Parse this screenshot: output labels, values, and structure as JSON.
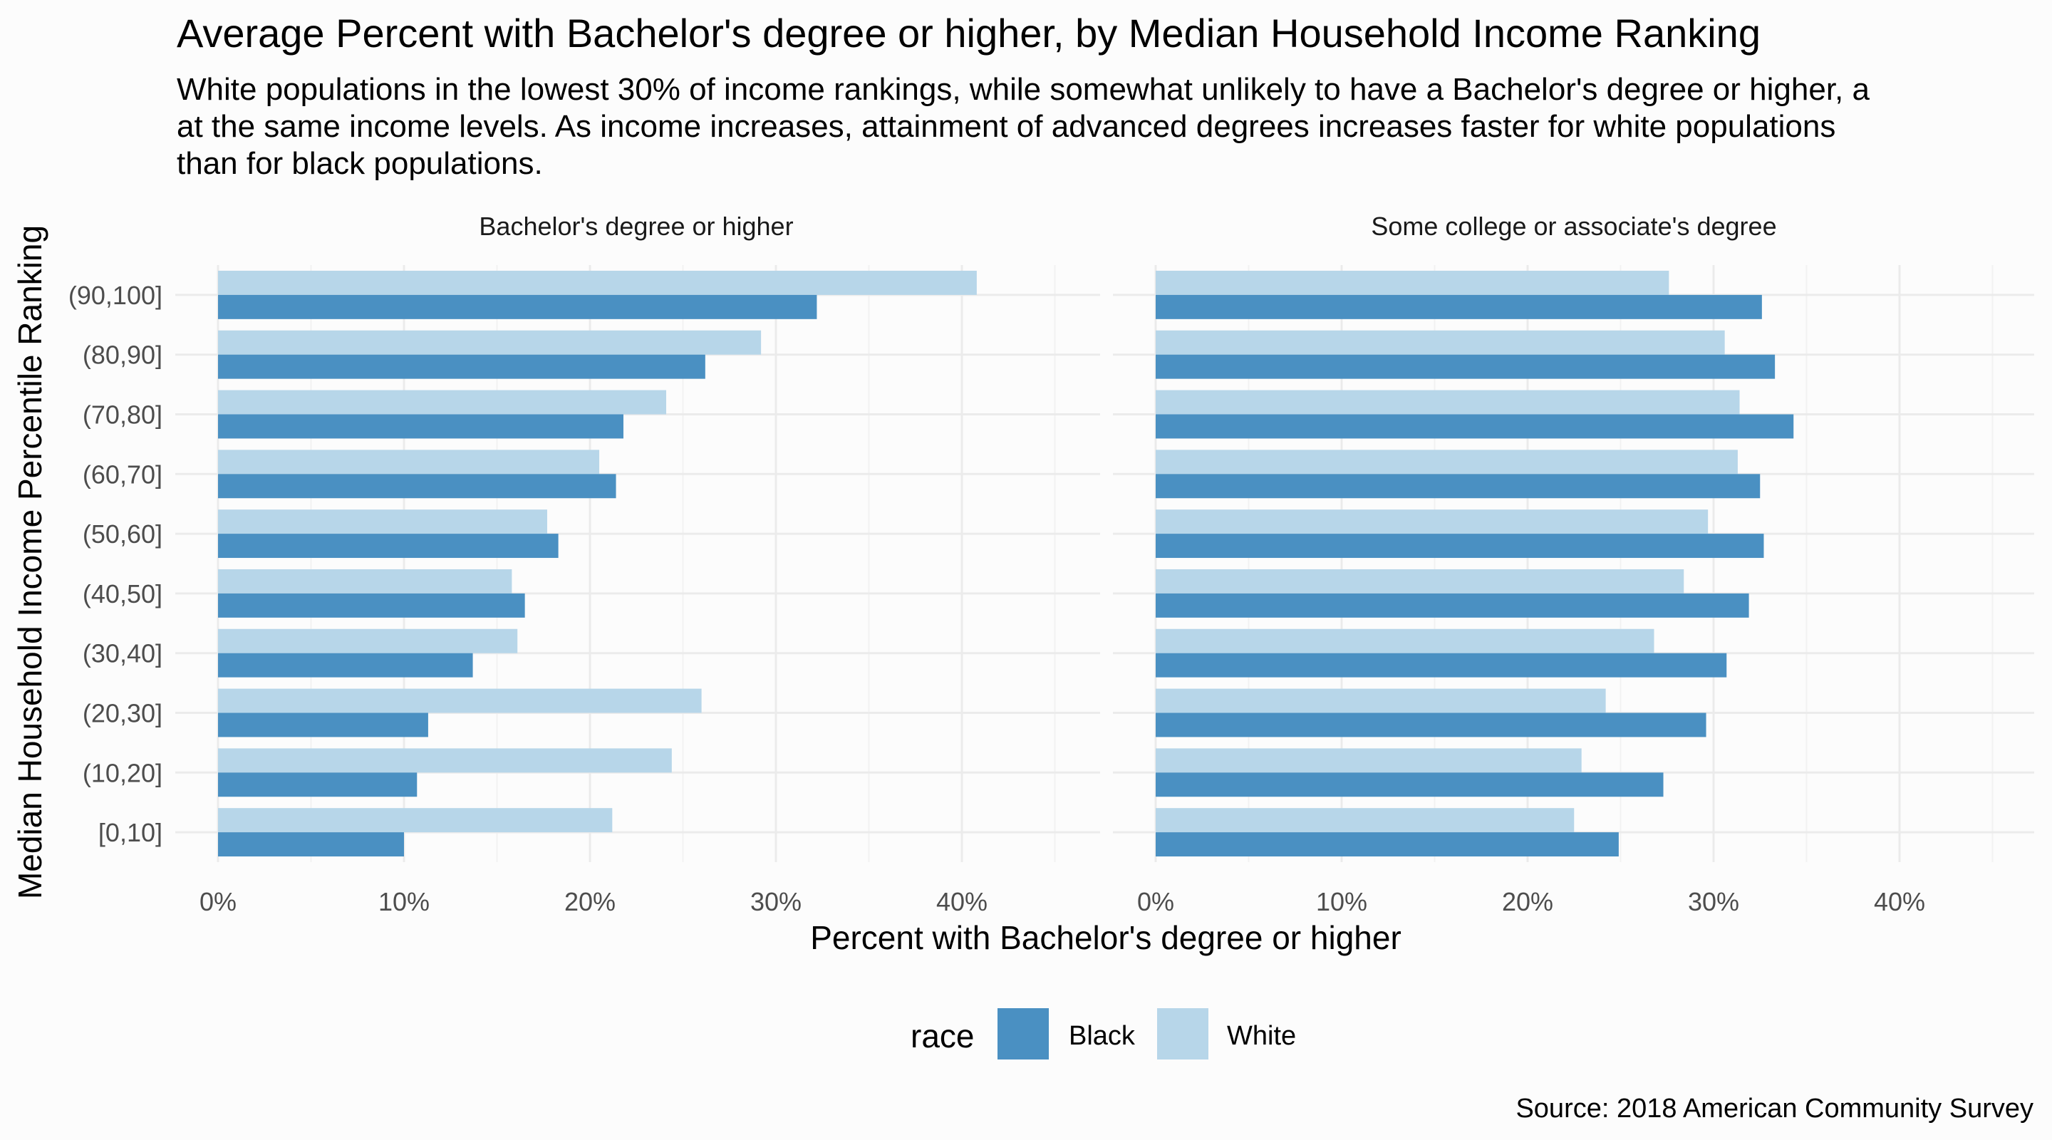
{
  "title": "Average Percent with Bachelor's degree or higher, by Median Household Income Ranking",
  "subtitle_lines": [
    "White populations in the lowest 30% of income rankings, while somewhat unlikely to have a Bachelor's degree or higher, a",
    "at the same income levels. As income increases, attainment of advanced degrees increases faster for white populations",
    "than for black populations."
  ],
  "caption": "Source: 2018 American Community Survey",
  "colors": {
    "Black": "#4a90c2",
    "White": "#b7d6e9"
  },
  "chart_data": {
    "type": "bar",
    "orientation": "horizontal",
    "xlabel": "Percent with Bachelor's degree or higher",
    "ylabel": "Median Household Income Percentile Ranking",
    "xlim": [
      0,
      45
    ],
    "x_ticks": [
      "0%",
      "10%",
      "20%",
      "30%",
      "40%"
    ],
    "categories": [
      "[0,10]",
      "(10,20]",
      "(20,30]",
      "(30,40]",
      "(40,50]",
      "(50,60]",
      "(60,70]",
      "(70,80]",
      "(80,90]",
      "(90,100]"
    ],
    "legend": {
      "title": "race",
      "position": "bottom",
      "entries": [
        "Black",
        "White"
      ]
    },
    "grid": true,
    "panels": [
      {
        "title": "Bachelor's degree or higher",
        "series": [
          {
            "name": "Black",
            "values": [
              10.0,
              10.7,
              11.3,
              13.7,
              16.5,
              18.3,
              21.4,
              21.8,
              26.2,
              32.2
            ]
          },
          {
            "name": "White",
            "values": [
              21.2,
              24.4,
              26.0,
              16.1,
              15.8,
              17.7,
              20.5,
              24.1,
              29.2,
              40.8
            ]
          }
        ]
      },
      {
        "title": "Some college or associate's degree",
        "series": [
          {
            "name": "Black",
            "values": [
              24.9,
              27.3,
              29.6,
              30.7,
              31.9,
              32.7,
              32.5,
              34.3,
              33.3,
              32.6
            ]
          },
          {
            "name": "White",
            "values": [
              22.5,
              22.9,
              24.2,
              26.8,
              28.4,
              29.7,
              31.3,
              31.4,
              30.6,
              27.6
            ]
          }
        ]
      }
    ]
  }
}
